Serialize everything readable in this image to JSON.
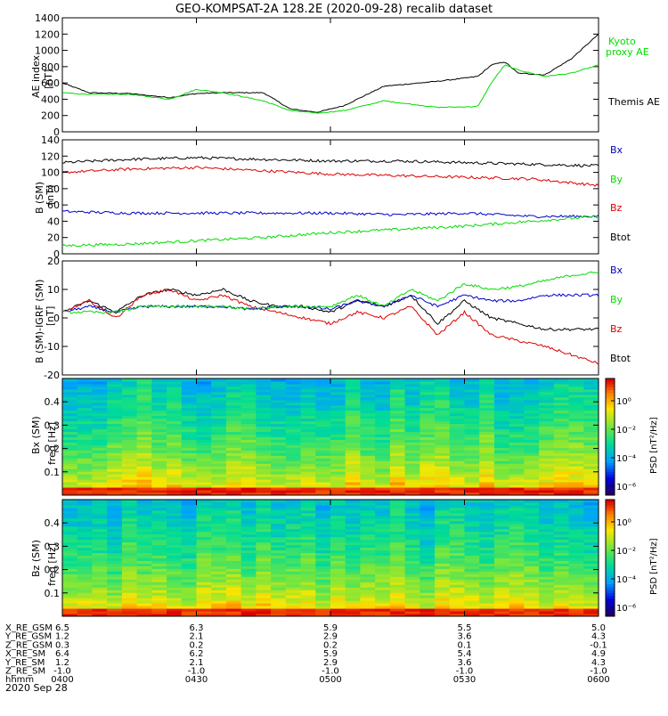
{
  "title": "GEO-KOMPSAT-2A 128.2E (2020-09-28) recalib dataset",
  "colors": {
    "black": "#000000",
    "red": "#dd0000",
    "blue": "#0000cc",
    "green": "#00dd00"
  },
  "panels": {
    "ae": {
      "ylabel1": "AE index",
      "ylabel2": "[nT]",
      "legend": [
        {
          "text": "Kyoto",
          "color": "#00dd00"
        },
        {
          "text": "proxy AE",
          "color": "#00dd00"
        },
        {
          "text": "Themis AE",
          "color": "#000000"
        }
      ]
    },
    "b": {
      "ylabel1": "B (SM)",
      "ylabel2": "[nT]",
      "legend": [
        {
          "text": "Bx",
          "color": "#0000cc"
        },
        {
          "text": "By",
          "color": "#00dd00"
        },
        {
          "text": "Bz",
          "color": "#dd0000"
        },
        {
          "text": "Btot",
          "color": "#000000"
        }
      ]
    },
    "db": {
      "ylabel1": "B (SM)-IGRF (SM)",
      "ylabel2": "[nT]",
      "legend": [
        {
          "text": "Bx",
          "color": "#0000cc"
        },
        {
          "text": "By",
          "color": "#00dd00"
        },
        {
          "text": "Bz",
          "color": "#dd0000"
        },
        {
          "text": "Btot",
          "color": "#000000"
        }
      ]
    },
    "specx": {
      "ylabel1": "Bx (SM)",
      "ylabel2": "freq [Hz]",
      "cblabel": "PSD [nT²/Hz]"
    },
    "specz": {
      "ylabel1": "Bz (SM)",
      "ylabel2": "freq [Hz]",
      "cblabel": "PSD [nT²/Hz]"
    }
  },
  "ephemeris": {
    "rows": [
      {
        "label": "X_RE_GSM",
        "values": [
          "6.5",
          "6.3",
          "5.9",
          "5.5",
          "5.0"
        ]
      },
      {
        "label": "Y_RE_GSM",
        "values": [
          "1.2",
          "2.1",
          "2.9",
          "3.6",
          "4.3"
        ]
      },
      {
        "label": "Z_RE_GSM",
        "values": [
          "0.3",
          "0.2",
          "0.2",
          "0.1",
          "-0.1"
        ]
      },
      {
        "label": "X_RE_SM",
        "values": [
          "6.4",
          "6.2",
          "5.9",
          "5.4",
          "4.9"
        ]
      },
      {
        "label": "Y_RE_SM",
        "values": [
          "1.2",
          "2.1",
          "2.9",
          "3.6",
          "4.3"
        ]
      },
      {
        "label": "Z_RE_SM",
        "values": [
          "-1.0",
          "-1.0",
          "-1.0",
          "-1.0",
          "-1.0"
        ]
      },
      {
        "label": "hhmm",
        "values": [
          "0400",
          "0430",
          "0500",
          "0530",
          "0600"
        ]
      }
    ],
    "date": "2020 Sep 28"
  },
  "chart_data": [
    {
      "type": "line",
      "panel": "ae",
      "xlabel": "",
      "x_range_hours": [
        4.0,
        6.0
      ],
      "ylim": [
        0,
        1400
      ],
      "yticks": [
        "0",
        "200",
        "400",
        "600",
        "800",
        "1000",
        "1200",
        "1400"
      ],
      "series": [
        {
          "name": "Themis AE",
          "color": "#000000",
          "x": [
            4.0,
            4.1,
            4.25,
            4.4,
            4.5,
            4.6,
            4.75,
            4.85,
            4.95,
            5.05,
            5.2,
            5.4,
            5.55,
            5.6,
            5.65,
            5.7,
            5.8,
            5.9,
            6.0
          ],
          "y": [
            600,
            480,
            470,
            420,
            470,
            480,
            480,
            280,
            240,
            320,
            560,
            620,
            680,
            820,
            860,
            720,
            700,
            900,
            1200
          ]
        },
        {
          "name": "Kyoto proxy AE",
          "color": "#00dd00",
          "x": [
            4.0,
            4.1,
            4.25,
            4.4,
            4.5,
            4.6,
            4.75,
            4.85,
            4.95,
            5.05,
            5.2,
            5.4,
            5.55,
            5.6,
            5.65,
            5.7,
            5.8,
            5.9,
            6.0
          ],
          "y": [
            480,
            460,
            460,
            400,
            520,
            480,
            380,
            260,
            230,
            260,
            380,
            300,
            310,
            600,
            820,
            760,
            680,
            720,
            820
          ]
        }
      ]
    },
    {
      "type": "line",
      "panel": "b",
      "x_range_hours": [
        4.0,
        6.0
      ],
      "ylim": [
        0,
        140
      ],
      "yticks": [
        "0",
        "20",
        "40",
        "60",
        "80",
        "100",
        "120",
        "140"
      ],
      "series": [
        {
          "name": "Btot",
          "color": "#000000",
          "x": [
            4.0,
            4.25,
            4.5,
            4.75,
            5.0,
            5.25,
            5.5,
            5.75,
            6.0
          ],
          "y": [
            112,
            116,
            118,
            116,
            114,
            114,
            112,
            110,
            108
          ]
        },
        {
          "name": "Bz",
          "color": "#dd0000",
          "x": [
            4.0,
            4.25,
            4.5,
            4.75,
            5.0,
            5.25,
            5.5,
            5.75,
            6.0
          ],
          "y": [
            100,
            104,
            106,
            102,
            98,
            96,
            94,
            92,
            84
          ]
        },
        {
          "name": "Bx",
          "color": "#0000cc",
          "x": [
            4.0,
            4.25,
            4.5,
            4.75,
            5.0,
            5.25,
            5.5,
            5.75,
            6.0
          ],
          "y": [
            52,
            50,
            50,
            50,
            50,
            48,
            50,
            46,
            46
          ]
        },
        {
          "name": "By",
          "color": "#00dd00",
          "x": [
            4.0,
            4.25,
            4.5,
            4.75,
            5.0,
            5.25,
            5.5,
            5.75,
            6.0
          ],
          "y": [
            10,
            12,
            16,
            20,
            26,
            30,
            34,
            40,
            46
          ]
        }
      ]
    },
    {
      "type": "line",
      "panel": "db",
      "x_range_hours": [
        4.0,
        6.0
      ],
      "ylim": [
        -20,
        20
      ],
      "yticks": [
        "-20",
        "-10",
        "0",
        "10",
        "20"
      ],
      "series": [
        {
          "name": "Btot",
          "color": "#000000",
          "x": [
            4.0,
            4.1,
            4.2,
            4.3,
            4.4,
            4.5,
            4.6,
            4.7,
            4.8,
            4.9,
            5.0,
            5.1,
            5.2,
            5.3,
            5.4,
            5.5,
            5.6,
            5.7,
            5.8,
            5.9,
            6.0
          ],
          "y": [
            2,
            6,
            2,
            8,
            10,
            8,
            10,
            6,
            4,
            4,
            2,
            6,
            4,
            8,
            -2,
            6,
            0,
            -2,
            -4,
            -4,
            -4
          ]
        },
        {
          "name": "Bz",
          "color": "#dd0000",
          "x": [
            4.0,
            4.1,
            4.2,
            4.3,
            4.4,
            4.5,
            4.6,
            4.7,
            4.8,
            4.9,
            5.0,
            5.1,
            5.2,
            5.3,
            5.4,
            5.5,
            5.6,
            5.7,
            5.8,
            5.9,
            6.0
          ],
          "y": [
            2,
            6,
            0,
            8,
            10,
            6,
            8,
            4,
            2,
            0,
            -2,
            2,
            0,
            4,
            -6,
            2,
            -6,
            -8,
            -10,
            -13,
            -16
          ]
        },
        {
          "name": "Bx",
          "color": "#0000cc",
          "x": [
            4.0,
            4.1,
            4.2,
            4.3,
            4.4,
            4.5,
            4.6,
            4.7,
            4.8,
            4.9,
            5.0,
            5.1,
            5.2,
            5.3,
            5.4,
            5.5,
            5.6,
            5.7,
            5.8,
            5.9,
            6.0
          ],
          "y": [
            2,
            4,
            2,
            4,
            4,
            4,
            4,
            3,
            4,
            4,
            3,
            6,
            4,
            8,
            4,
            8,
            6,
            6,
            8,
            8,
            8
          ]
        },
        {
          "name": "By",
          "color": "#00dd00",
          "x": [
            4.0,
            4.1,
            4.2,
            4.3,
            4.4,
            4.5,
            4.6,
            4.7,
            4.8,
            4.9,
            5.0,
            5.1,
            5.2,
            5.3,
            5.4,
            5.5,
            5.6,
            5.7,
            5.8,
            5.9,
            6.0
          ],
          "y": [
            2,
            2,
            2,
            4,
            4,
            4,
            4,
            3,
            4,
            4,
            4,
            8,
            4,
            10,
            6,
            12,
            10,
            11,
            13,
            15,
            16
          ]
        }
      ]
    },
    {
      "type": "heatmap",
      "panel": "specx",
      "x_range_hours": [
        4.0,
        6.0
      ],
      "ylim": [
        0,
        0.5
      ],
      "yticks": [
        "0.1",
        "0.2",
        "0.3",
        "0.4"
      ],
      "colorbar_ticks": [
        "10⁰",
        "10⁻²",
        "10⁻⁴",
        "10⁻⁶"
      ]
    },
    {
      "type": "heatmap",
      "panel": "specz",
      "x_range_hours": [
        4.0,
        6.0
      ],
      "ylim": [
        0,
        0.5
      ],
      "yticks": [
        "0.1",
        "0.2",
        "0.3",
        "0.4"
      ],
      "colorbar_ticks": [
        "10⁰",
        "10⁻²",
        "10⁻⁴",
        "10⁻⁶"
      ]
    }
  ]
}
